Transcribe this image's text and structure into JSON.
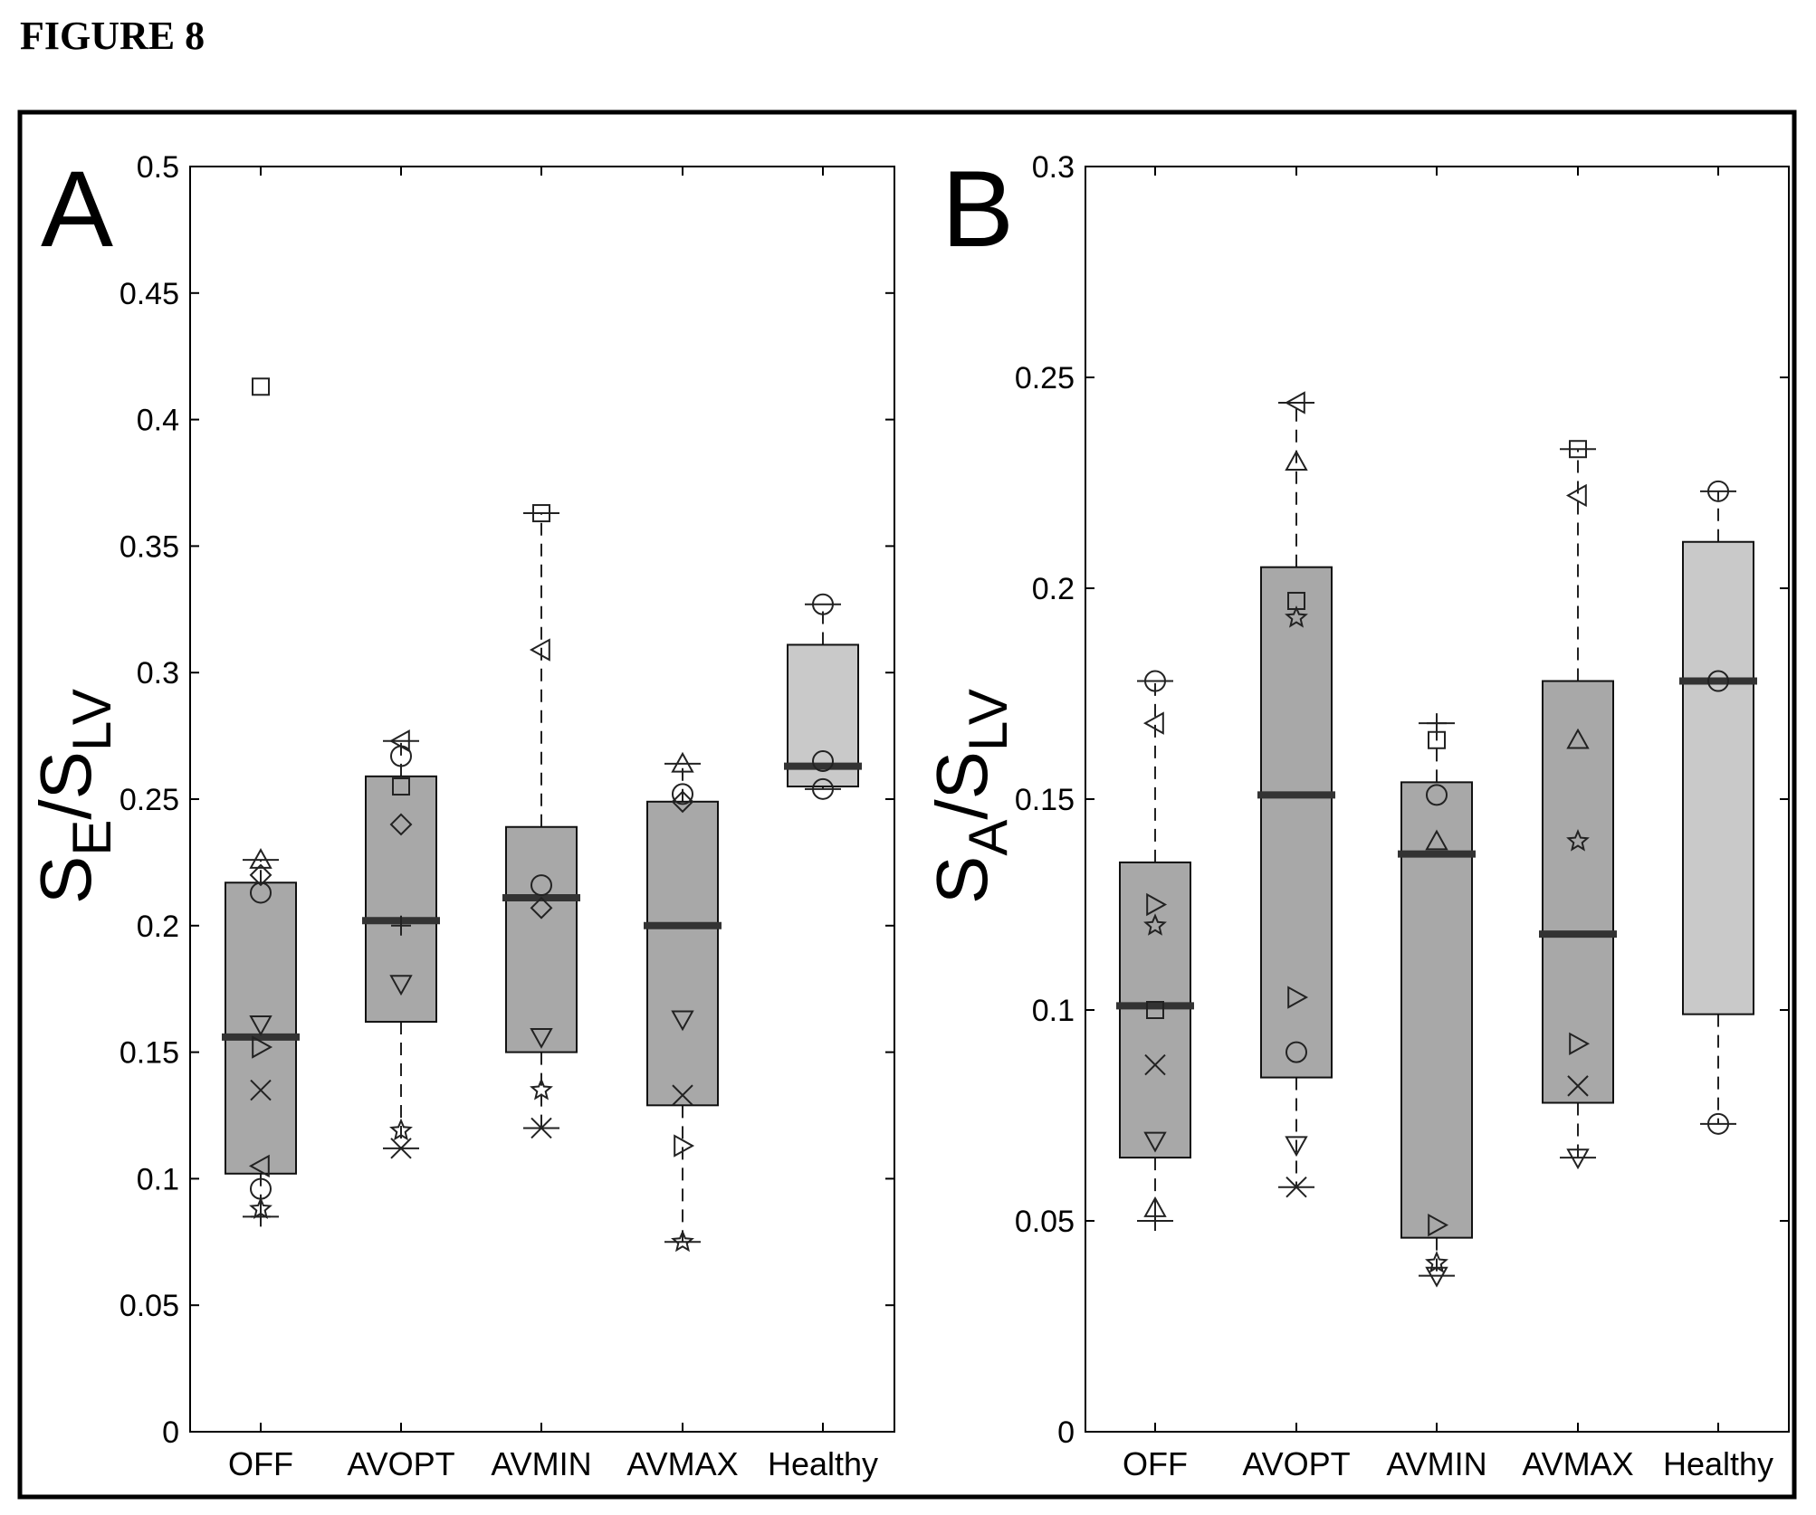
{
  "figure_title": "FIGURE 8",
  "chart_data": [
    {
      "type": "box",
      "panel_label": "A",
      "ylabel": {
        "main": "S",
        "sub1": "E",
        "sep": "/S",
        "sub2": "LV"
      },
      "ylim": [
        0,
        0.5
      ],
      "yticks": [
        0,
        0.05,
        0.1,
        0.15,
        0.2,
        0.25,
        0.3,
        0.35,
        0.4,
        0.45,
        0.5
      ],
      "ytick_labels": [
        "0",
        "0.05",
        "0.1",
        "0.15",
        "0.2",
        "0.25",
        "0.3",
        "0.35",
        "0.4",
        "0.45",
        "0.5"
      ],
      "categories": [
        "OFF",
        "AVOPT",
        "AVMIN",
        "AVMAX",
        "Healthy"
      ],
      "boxes": [
        {
          "q1": 0.102,
          "median": 0.156,
          "q3": 0.217,
          "whisker_low": 0.085,
          "whisker_high": 0.226,
          "points": [
            {
              "y": 0.413,
              "marker": "square"
            },
            {
              "y": 0.226,
              "marker": "triangle-up"
            },
            {
              "y": 0.22,
              "marker": "diamond"
            },
            {
              "y": 0.213,
              "marker": "circle"
            },
            {
              "y": 0.161,
              "marker": "triangle-down"
            },
            {
              "y": 0.152,
              "marker": "triangle-right"
            },
            {
              "y": 0.135,
              "marker": "x"
            },
            {
              "y": 0.105,
              "marker": "triangle-left"
            },
            {
              "y": 0.096,
              "marker": "circle"
            },
            {
              "y": 0.088,
              "marker": "star"
            },
            {
              "y": 0.085,
              "marker": "plus"
            }
          ]
        },
        {
          "q1": 0.162,
          "median": 0.202,
          "q3": 0.259,
          "whisker_low": 0.112,
          "whisker_high": 0.273,
          "points": [
            {
              "y": 0.273,
              "marker": "triangle-left"
            },
            {
              "y": 0.267,
              "marker": "circle"
            },
            {
              "y": 0.255,
              "marker": "square"
            },
            {
              "y": 0.24,
              "marker": "diamond"
            },
            {
              "y": 0.2,
              "marker": "plus"
            },
            {
              "y": 0.177,
              "marker": "triangle-down"
            },
            {
              "y": 0.119,
              "marker": "star"
            },
            {
              "y": 0.112,
              "marker": "x"
            }
          ]
        },
        {
          "q1": 0.15,
          "median": 0.211,
          "q3": 0.239,
          "whisker_low": 0.12,
          "whisker_high": 0.363,
          "points": [
            {
              "y": 0.363,
              "marker": "square"
            },
            {
              "y": 0.309,
              "marker": "triangle-left"
            },
            {
              "y": 0.216,
              "marker": "circle"
            },
            {
              "y": 0.207,
              "marker": "diamond"
            },
            {
              "y": 0.156,
              "marker": "triangle-down"
            },
            {
              "y": 0.135,
              "marker": "star"
            },
            {
              "y": 0.12,
              "marker": "x"
            }
          ]
        },
        {
          "q1": 0.129,
          "median": 0.2,
          "q3": 0.249,
          "whisker_low": 0.075,
          "whisker_high": 0.264,
          "points": [
            {
              "y": 0.264,
              "marker": "triangle-up"
            },
            {
              "y": 0.252,
              "marker": "circle"
            },
            {
              "y": 0.249,
              "marker": "diamond"
            },
            {
              "y": 0.163,
              "marker": "triangle-down"
            },
            {
              "y": 0.133,
              "marker": "x"
            },
            {
              "y": 0.113,
              "marker": "triangle-right"
            },
            {
              "y": 0.075,
              "marker": "star"
            }
          ]
        },
        {
          "q1": 0.255,
          "median": 0.263,
          "q3": 0.311,
          "whisker_low": 0.254,
          "whisker_high": 0.327,
          "points": [
            {
              "y": 0.327,
              "marker": "circle"
            },
            {
              "y": 0.265,
              "marker": "circle"
            },
            {
              "y": 0.254,
              "marker": "circle"
            }
          ]
        }
      ]
    },
    {
      "type": "box",
      "panel_label": "B",
      "ylabel": {
        "main": "S",
        "sub1": "A",
        "sep": "/S",
        "sub2": "LV"
      },
      "ylim": [
        0,
        0.3
      ],
      "yticks": [
        0,
        0.05,
        0.1,
        0.15,
        0.2,
        0.25,
        0.3
      ],
      "ytick_labels": [
        "0",
        "0.05",
        "0.1",
        "0.15",
        "0.2",
        "0.25",
        "0.3"
      ],
      "categories": [
        "OFF",
        "AVOPT",
        "AVMIN",
        "AVMAX",
        "Healthy"
      ],
      "boxes": [
        {
          "q1": 0.065,
          "median": 0.101,
          "q3": 0.135,
          "whisker_low": 0.05,
          "whisker_high": 0.178,
          "points": [
            {
              "y": 0.178,
              "marker": "circle"
            },
            {
              "y": 0.168,
              "marker": "triangle-left"
            },
            {
              "y": 0.125,
              "marker": "triangle-right"
            },
            {
              "y": 0.12,
              "marker": "star"
            },
            {
              "y": 0.1,
              "marker": "square"
            },
            {
              "y": 0.087,
              "marker": "x"
            },
            {
              "y": 0.069,
              "marker": "triangle-down"
            },
            {
              "y": 0.053,
              "marker": "triangle-up"
            },
            {
              "y": 0.05,
              "marker": "plus"
            }
          ]
        },
        {
          "q1": 0.084,
          "median": 0.151,
          "q3": 0.205,
          "whisker_low": 0.058,
          "whisker_high": 0.244,
          "points": [
            {
              "y": 0.244,
              "marker": "triangle-left"
            },
            {
              "y": 0.23,
              "marker": "triangle-up"
            },
            {
              "y": 0.197,
              "marker": "square"
            },
            {
              "y": 0.193,
              "marker": "star"
            },
            {
              "y": 0.103,
              "marker": "triangle-right"
            },
            {
              "y": 0.09,
              "marker": "circle"
            },
            {
              "y": 0.068,
              "marker": "triangle-down"
            },
            {
              "y": 0.058,
              "marker": "x"
            }
          ]
        },
        {
          "q1": 0.046,
          "median": 0.137,
          "q3": 0.154,
          "whisker_low": 0.037,
          "whisker_high": 0.168,
          "points": [
            {
              "y": 0.168,
              "marker": "plus"
            },
            {
              "y": 0.164,
              "marker": "square"
            },
            {
              "y": 0.151,
              "marker": "circle"
            },
            {
              "y": 0.14,
              "marker": "triangle-up"
            },
            {
              "y": 0.049,
              "marker": "triangle-right"
            },
            {
              "y": 0.04,
              "marker": "star"
            },
            {
              "y": 0.037,
              "marker": "triangle-down"
            }
          ]
        },
        {
          "q1": 0.078,
          "median": 0.118,
          "q3": 0.178,
          "whisker_low": 0.065,
          "whisker_high": 0.233,
          "points": [
            {
              "y": 0.233,
              "marker": "square"
            },
            {
              "y": 0.222,
              "marker": "triangle-left"
            },
            {
              "y": 0.164,
              "marker": "triangle-up"
            },
            {
              "y": 0.14,
              "marker": "star"
            },
            {
              "y": 0.092,
              "marker": "triangle-right"
            },
            {
              "y": 0.082,
              "marker": "x"
            },
            {
              "y": 0.065,
              "marker": "triangle-down"
            }
          ]
        },
        {
          "q1": 0.099,
          "median": 0.178,
          "q3": 0.211,
          "whisker_low": 0.073,
          "whisker_high": 0.223,
          "points": [
            {
              "y": 0.223,
              "marker": "circle"
            },
            {
              "y": 0.178,
              "marker": "circle"
            },
            {
              "y": 0.073,
              "marker": "circle"
            }
          ]
        }
      ]
    }
  ]
}
